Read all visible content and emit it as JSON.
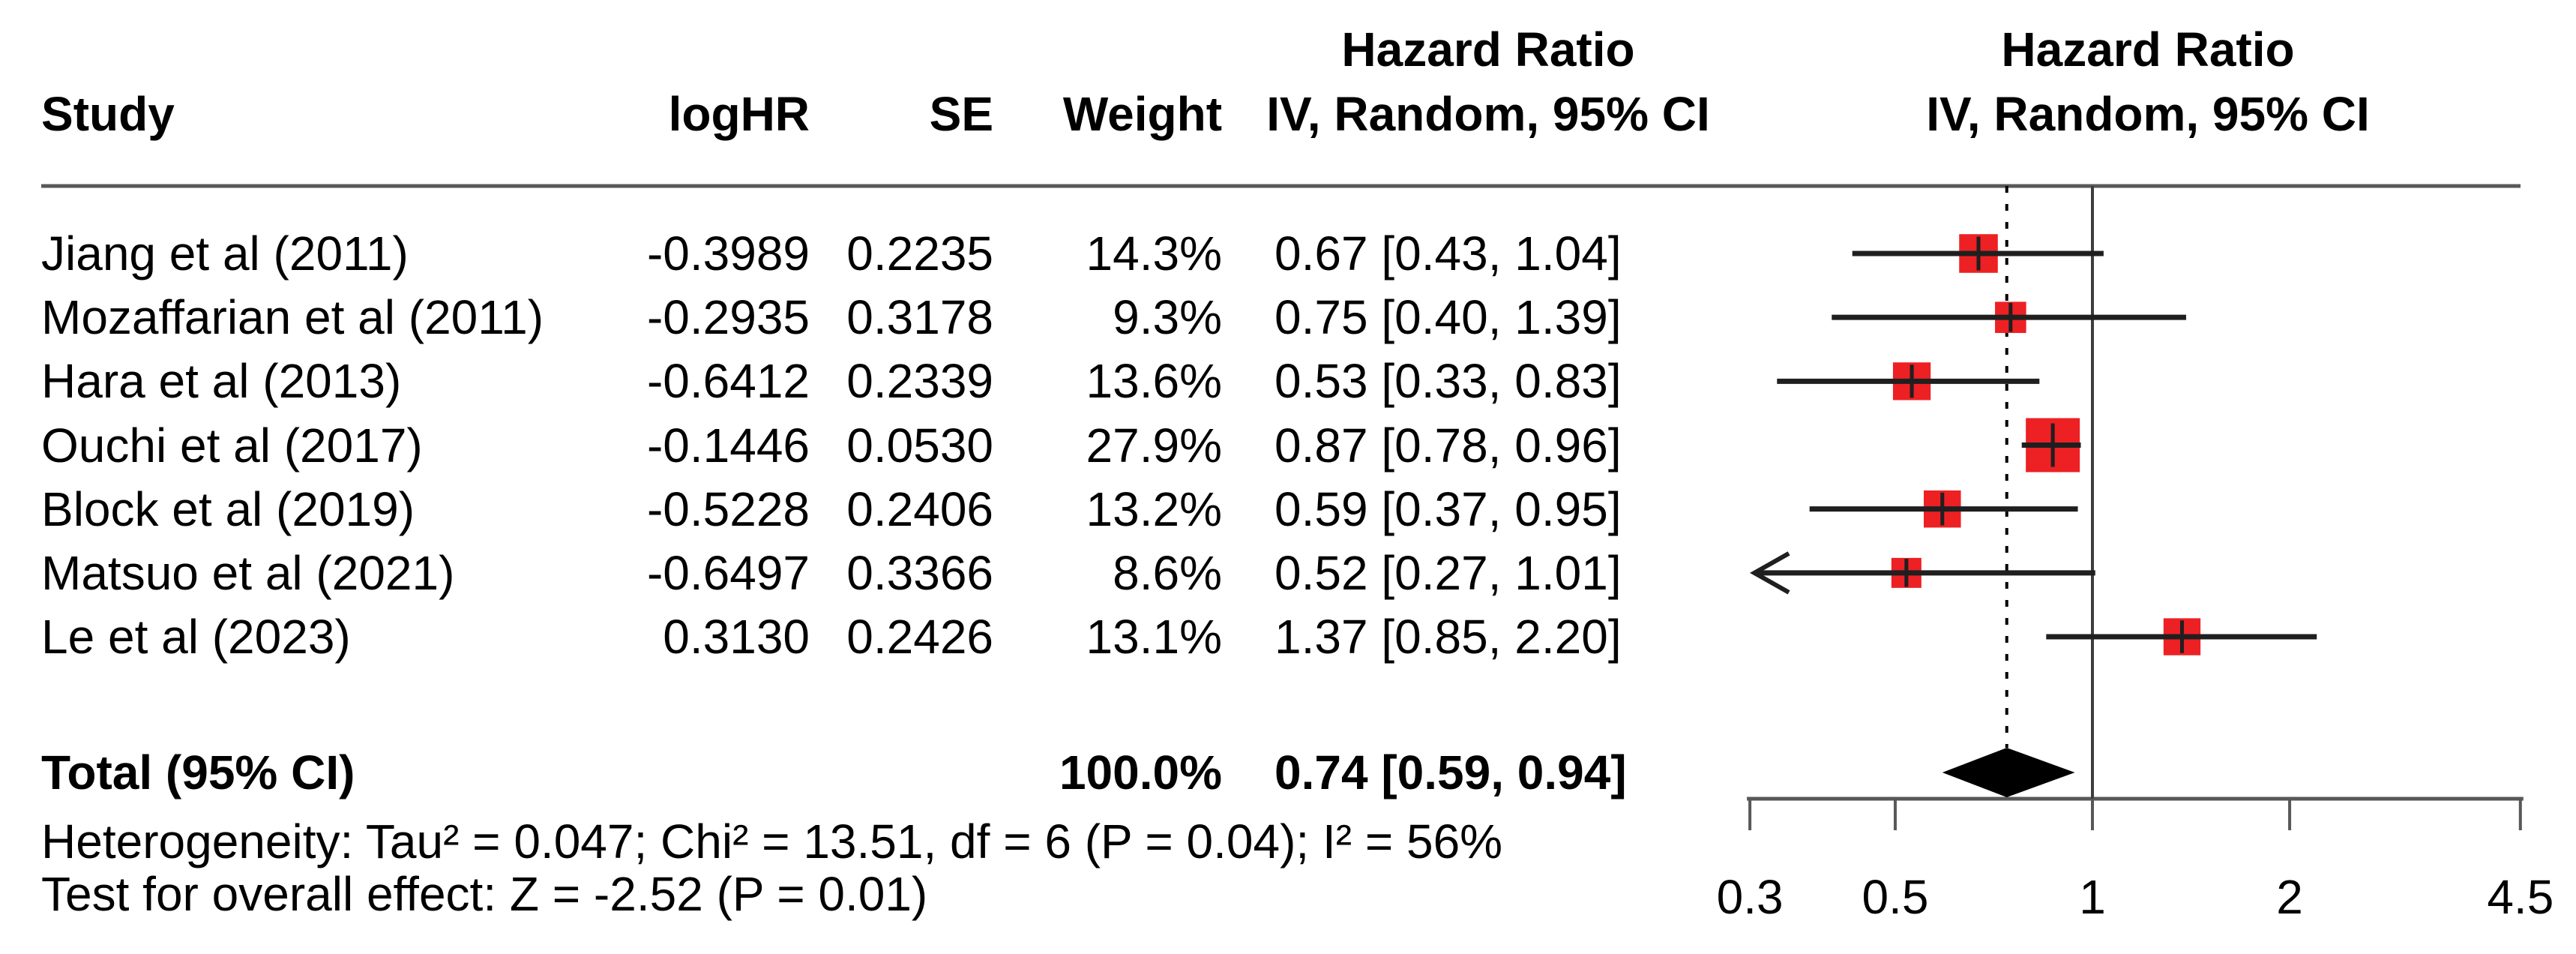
{
  "header": {
    "study": "Study",
    "loghr": "logHR",
    "se": "SE",
    "weight": "Weight",
    "effect_col": {
      "line1": "Hazard Ratio",
      "line2": "IV, Random, 95% CI"
    },
    "plot_col": {
      "line1": "Hazard Ratio",
      "line2": "IV, Random, 95% CI"
    }
  },
  "studies": [
    {
      "name": "Jiang et al (2011)",
      "loghr": "-0.3989",
      "se": "0.2235",
      "weight": "14.3%",
      "ci_text": "0.67 [0.43, 1.04]",
      "hr": 0.67,
      "low": 0.43,
      "high": 1.04,
      "weight_pct": 14.3
    },
    {
      "name": "Mozaffarian et al (2011)",
      "loghr": "-0.2935",
      "se": "0.3178",
      "weight": "9.3%",
      "ci_text": "0.75 [0.40, 1.39]",
      "hr": 0.75,
      "low": 0.4,
      "high": 1.39,
      "weight_pct": 9.3
    },
    {
      "name": "Hara et al (2013)",
      "loghr": "-0.6412",
      "se": "0.2339",
      "weight": "13.6%",
      "ci_text": "0.53 [0.33, 0.83]",
      "hr": 0.53,
      "low": 0.33,
      "high": 0.83,
      "weight_pct": 13.6
    },
    {
      "name": "Ouchi et al (2017)",
      "loghr": "-0.1446",
      "se": "0.0530",
      "weight": "27.9%",
      "ci_text": "0.87 [0.78, 0.96]",
      "hr": 0.87,
      "low": 0.78,
      "high": 0.96,
      "weight_pct": 27.9
    },
    {
      "name": "Block et al (2019)",
      "loghr": "-0.5228",
      "se": "0.2406",
      "weight": "13.2%",
      "ci_text": "0.59 [0.37, 0.95]",
      "hr": 0.59,
      "low": 0.37,
      "high": 0.95,
      "weight_pct": 13.2
    },
    {
      "name": "Matsuo et al (2021)",
      "loghr": "-0.6497",
      "se": "0.3366",
      "weight": "8.6%",
      "ci_text": "0.52 [0.27, 1.01]",
      "hr": 0.52,
      "low": 0.27,
      "high": 1.01,
      "weight_pct": 8.6
    },
    {
      "name": "Le et al (2023)",
      "loghr": "0.3130",
      "se": "0.2426",
      "weight": "13.1%",
      "ci_text": "1.37 [0.85, 2.20]",
      "hr": 1.37,
      "low": 0.85,
      "high": 2.2,
      "weight_pct": 13.1
    }
  ],
  "total": {
    "label": "Total (95% CI)",
    "weight": "100.0%",
    "ci_text": "0.74 [0.59, 0.94]",
    "hr": 0.74,
    "low": 0.59,
    "high": 0.94
  },
  "footnotes": {
    "heterogeneity": "Heterogeneity: Tau² = 0.047; Chi² = 13.51, df = 6 (P = 0.04); I² = 56%",
    "overall_effect": "Test for overall effect: Z = -2.52 (P = 0.01)"
  },
  "colors": {
    "square": "#ED2024",
    "diamond": "#000000",
    "ci_line": "#1f1f1f",
    "ref_line": "#3d3d3d",
    "overall_dashed_line": "#000000",
    "axis": "#58585a",
    "text": "#000000"
  },
  "chart_data": {
    "type": "scatter",
    "subtype": "forest-plot",
    "title": "Hazard Ratio — IV, Random, 95% CI",
    "x_axis": {
      "scale": "log",
      "range": [
        0.3,
        4.5
      ],
      "ticks": [
        0.3,
        0.5,
        1,
        2,
        4.5
      ],
      "tick_labels": [
        "0.3",
        "0.5",
        "1",
        "2",
        "4.5"
      ],
      "reference_line": 1,
      "overall_effect_line": 0.74,
      "clamp_arrow_below": 0.3
    },
    "series": [
      {
        "name": "Jiang et al (2011)",
        "hr": 0.67,
        "ci": [
          0.43,
          1.04
        ],
        "weight_pct": 14.3
      },
      {
        "name": "Mozaffarian et al (2011)",
        "hr": 0.75,
        "ci": [
          0.4,
          1.39
        ],
        "weight_pct": 9.3
      },
      {
        "name": "Hara et al (2013)",
        "hr": 0.53,
        "ci": [
          0.33,
          0.83
        ],
        "weight_pct": 13.6
      },
      {
        "name": "Ouchi et al (2017)",
        "hr": 0.87,
        "ci": [
          0.78,
          0.96
        ],
        "weight_pct": 27.9
      },
      {
        "name": "Block et al (2019)",
        "hr": 0.59,
        "ci": [
          0.37,
          0.95
        ],
        "weight_pct": 13.2
      },
      {
        "name": "Matsuo et al (2021)",
        "hr": 0.52,
        "ci": [
          0.27,
          1.01
        ],
        "weight_pct": 8.6,
        "left_arrow": true
      },
      {
        "name": "Le et al (2023)",
        "hr": 1.37,
        "ci": [
          0.85,
          2.2
        ],
        "weight_pct": 13.1
      }
    ],
    "total_diamond": {
      "hr": 0.74,
      "ci": [
        0.59,
        0.94
      ],
      "weight_pct": 100.0
    }
  }
}
